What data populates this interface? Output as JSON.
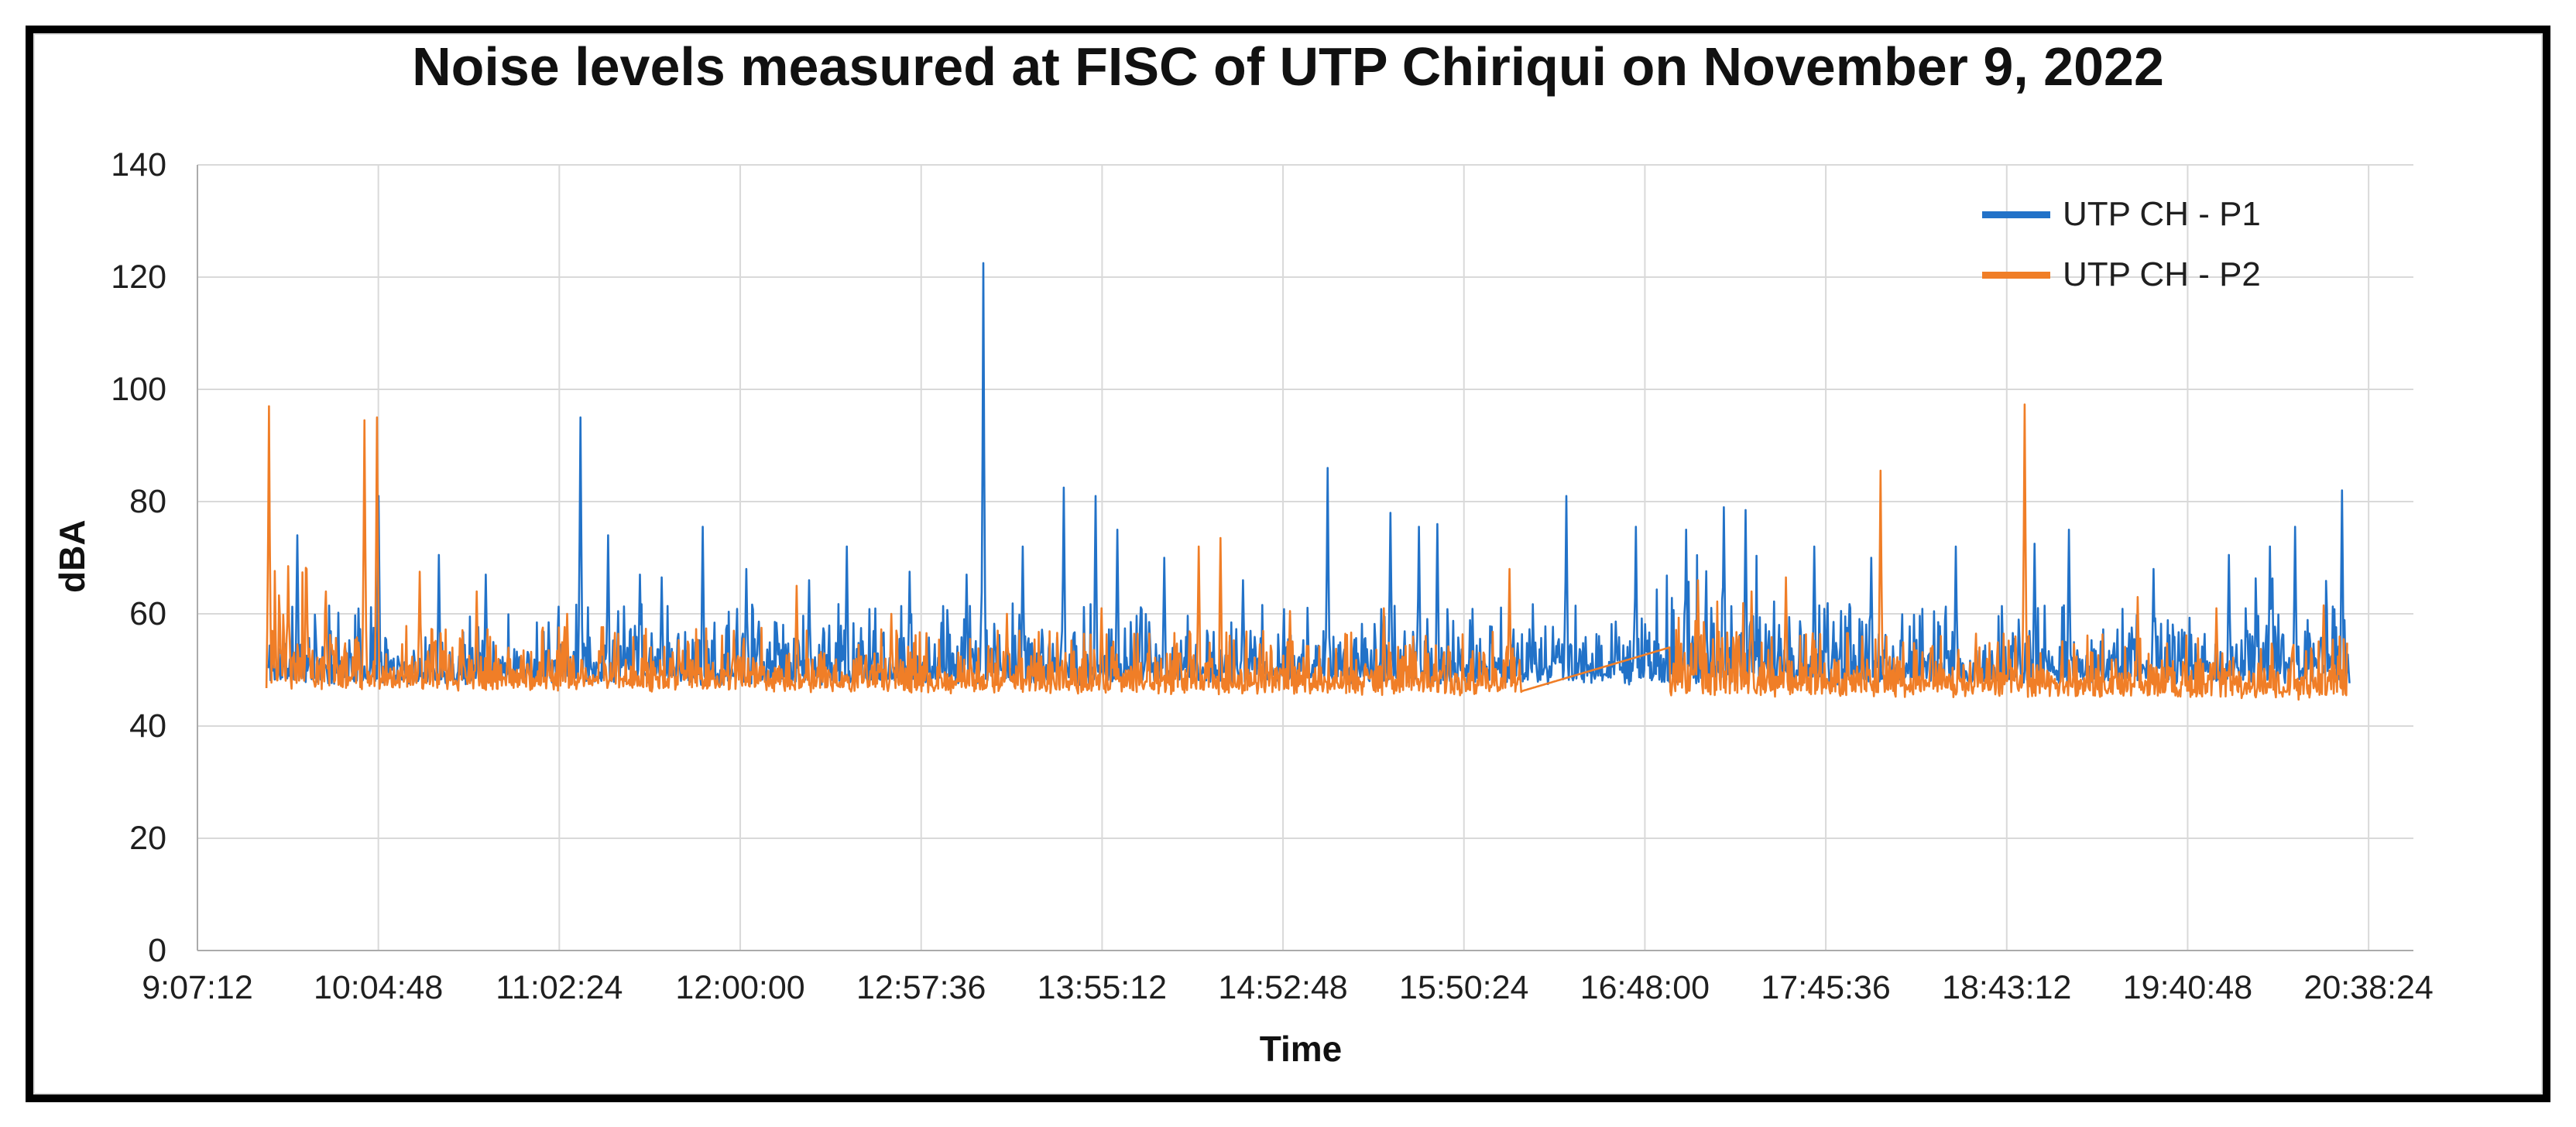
{
  "window": {
    "background": "#ffffff",
    "border_color": "#000000",
    "inner_frame_color": "#dcdcdc"
  },
  "chart_data": {
    "type": "line",
    "title": "Noise levels measured at FISC of UTP Chiriqui on November 9, 2022",
    "xlabel": "Time",
    "ylabel": "dBA",
    "ylim": [
      0,
      140
    ],
    "y_ticks": [
      0,
      20,
      40,
      60,
      80,
      100,
      120,
      140
    ],
    "x_ticks": [
      "9:07:12",
      "10:04:48",
      "11:02:24",
      "12:00:00",
      "12:57:36",
      "13:55:12",
      "14:52:48",
      "15:50:24",
      "16:48:00",
      "17:45:36",
      "18:43:12",
      "19:40:48",
      "20:38:24"
    ],
    "x_tick_seconds": [
      32832,
      36288,
      39744,
      43200,
      46656,
      50112,
      53568,
      57024,
      60480,
      63936,
      67392,
      70848,
      74304
    ],
    "x_domain_seconds": [
      32832,
      75160
    ],
    "grid": true,
    "gridline_color": "#d9d9d9",
    "axis_line_color": "#ababab",
    "legend_position": "top-right",
    "series": [
      {
        "name": "UTP CH - P1",
        "color": "#2272c8",
        "seed": 11,
        "start_s": 34180,
        "end_s": 73940,
        "sample_step_s": 16,
        "baseline": {
          "start": 47.3,
          "end": 47.3
        },
        "jitter": {
          "scale": 3.4,
          "max": 13.5
        },
        "busy_windows": [
          {
            "from_s": 60480,
            "to_s": 63060,
            "scale": 5.2,
            "max": 26
          },
          {
            "from_s": 71400,
            "to_s": 73500,
            "scale": 4.5,
            "max": 19
          }
        ],
        "spikes": [
          [
            34740,
            74
          ],
          [
            36290,
            81
          ],
          [
            37440,
            70.5
          ],
          [
            38340,
            67
          ],
          [
            40140,
            95
          ],
          [
            40680,
            74
          ],
          [
            41280,
            67
          ],
          [
            41700,
            66.5
          ],
          [
            42480,
            75.5
          ],
          [
            43320,
            68
          ],
          [
            44520,
            66
          ],
          [
            45240,
            72
          ],
          [
            46440,
            67.5
          ],
          [
            47520,
            67
          ],
          [
            47840,
            122.5
          ],
          [
            48600,
            72
          ],
          [
            49380,
            82.5
          ],
          [
            49980,
            81
          ],
          [
            50400,
            75
          ],
          [
            51300,
            70
          ],
          [
            52800,
            66
          ],
          [
            54420,
            86
          ],
          [
            55620,
            78
          ],
          [
            56160,
            75.5
          ],
          [
            56520,
            76
          ],
          [
            58980,
            81
          ],
          [
            60300,
            75.5
          ],
          [
            61260,
            75
          ],
          [
            61980,
            79
          ],
          [
            62400,
            78.5
          ],
          [
            63720,
            72
          ],
          [
            64800,
            70
          ],
          [
            66420,
            72
          ],
          [
            67920,
            72.5
          ],
          [
            68580,
            75
          ],
          [
            70200,
            68
          ],
          [
            71640,
            70.5
          ],
          [
            72420,
            72
          ],
          [
            72900,
            75.5
          ],
          [
            73800,
            82
          ]
        ]
      },
      {
        "name": "UTP CH - P2",
        "color": "#f07e27",
        "seed": 23,
        "start_s": 34150,
        "end_s": 73900,
        "sample_step_s": 16,
        "baseline": {
          "start": 46.4,
          "end": 44.6
        },
        "jitter": {
          "scale": 2.9,
          "max": 10.5
        },
        "busy_windows": [
          {
            "from_s": 34250,
            "to_s": 35500,
            "scale": 5.5,
            "max": 21
          },
          {
            "from_s": 60950,
            "to_s": 62400,
            "scale": 4.5,
            "max": 17
          }
        ],
        "gap": {
          "from_s": 58120,
          "to_s": 60950,
          "from_val": 46.2,
          "to_val": 54.0
        },
        "spikes": [
          [
            34200,
            97
          ],
          [
            34560,
            68.5
          ],
          [
            34920,
            68
          ],
          [
            35280,
            64
          ],
          [
            36020,
            94.5
          ],
          [
            36260,
            95
          ],
          [
            37080,
            67.5
          ],
          [
            38160,
            64
          ],
          [
            39900,
            60
          ],
          [
            43080,
            57
          ],
          [
            44280,
            65
          ],
          [
            46080,
            60
          ],
          [
            48300,
            60
          ],
          [
            50100,
            61
          ],
          [
            51960,
            72
          ],
          [
            52380,
            73.5
          ],
          [
            53700,
            60.5
          ],
          [
            55500,
            61
          ],
          [
            57900,
            68
          ],
          [
            61500,
            66
          ],
          [
            62520,
            64
          ],
          [
            63180,
            66.5
          ],
          [
            64980,
            85.5
          ],
          [
            67740,
            97.3
          ],
          [
            69900,
            63
          ],
          [
            71400,
            61
          ],
          [
            73440,
            61.5
          ]
        ]
      }
    ]
  }
}
